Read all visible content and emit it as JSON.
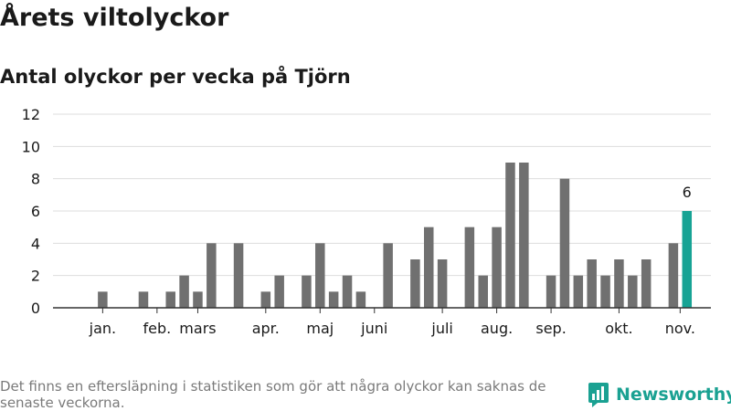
{
  "header": {
    "title": "Årets viltolyckor",
    "subtitle": "Antal olyckor per vecka på Tjörn"
  },
  "footer": {
    "note": "Det finns en eftersläpning i statistiken som gör att några olyckor kan saknas de senaste veckorna.",
    "brand": "Newsworthy",
    "brand_icon": "newsworthy-chart-logo-icon"
  },
  "colors": {
    "bar": "#707070",
    "highlight": "#16a394",
    "grid": "#dddddd",
    "axis": "#333333",
    "brand": "#1aa192"
  },
  "chart_data": {
    "type": "bar",
    "x_unit": "week",
    "x": [
      1,
      2,
      3,
      4,
      5,
      6,
      7,
      8,
      9,
      10,
      11,
      12,
      13,
      14,
      15,
      16,
      17,
      18,
      19,
      20,
      21,
      22,
      23,
      24,
      25,
      26,
      27,
      28,
      29,
      30,
      31,
      32,
      33,
      34,
      35,
      36,
      37,
      38,
      39,
      40,
      41,
      42,
      43,
      44,
      45
    ],
    "values": [
      0,
      1,
      0,
      0,
      1,
      0,
      1,
      2,
      1,
      4,
      0,
      4,
      0,
      1,
      2,
      0,
      2,
      4,
      1,
      2,
      1,
      0,
      4,
      0,
      3,
      5,
      3,
      0,
      5,
      2,
      5,
      9,
      9,
      0,
      2,
      8,
      2,
      3,
      2,
      3,
      2,
      3,
      0,
      4,
      6
    ],
    "highlight_last": true,
    "data_labels": [
      {
        "x": 45,
        "text": "6"
      }
    ],
    "month_ticks": [
      {
        "label": "jan.",
        "x": 2
      },
      {
        "label": "feb.",
        "x": 6
      },
      {
        "label": "mars",
        "x": 9
      },
      {
        "label": "apr.",
        "x": 14
      },
      {
        "label": "maj",
        "x": 18
      },
      {
        "label": "juni",
        "x": 22
      },
      {
        "label": "juli",
        "x": 27
      },
      {
        "label": "aug.",
        "x": 31
      },
      {
        "label": "sep.",
        "x": 35
      },
      {
        "label": "okt.",
        "x": 40
      },
      {
        "label": "nov.",
        "x": 44.5
      }
    ],
    "y_ticks": [
      0,
      2,
      4,
      6,
      8,
      10,
      12
    ],
    "ylim": [
      0,
      12
    ],
    "grid": true
  }
}
